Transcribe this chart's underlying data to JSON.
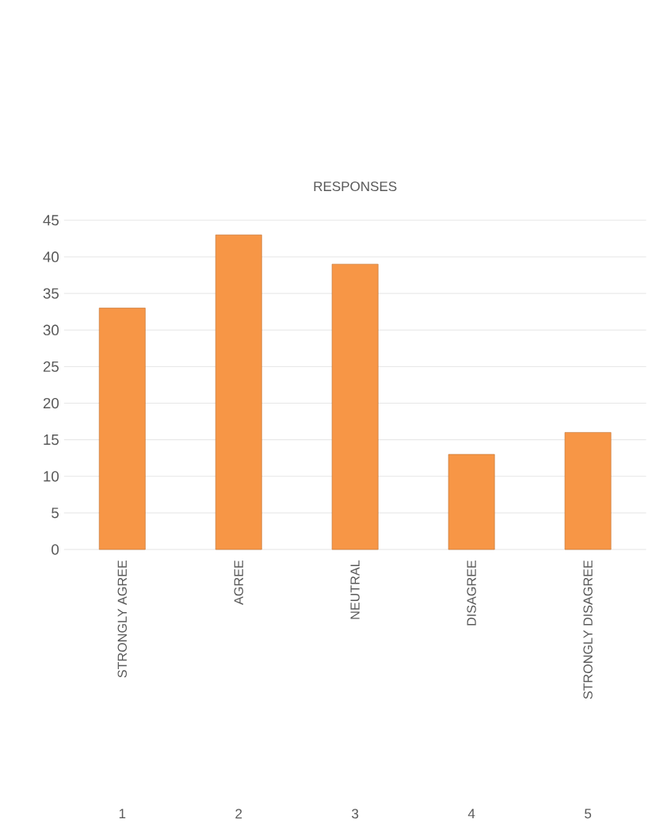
{
  "chart_data": {
    "type": "bar",
    "title": "RESPONSES",
    "categories": [
      "STRONGLY AGREE",
      "AGREE",
      "NEUTRAL",
      "DISAGREE",
      "STRONGLY DISAGREE"
    ],
    "values": [
      33,
      43,
      39,
      13,
      16
    ],
    "color": "#f79646",
    "ylim": [
      0,
      45
    ],
    "yticks": [
      0,
      5,
      10,
      15,
      20,
      25,
      30,
      35,
      40,
      45
    ],
    "grid": "y",
    "annotations": [
      "1",
      "2",
      "3",
      "4",
      "5"
    ]
  }
}
